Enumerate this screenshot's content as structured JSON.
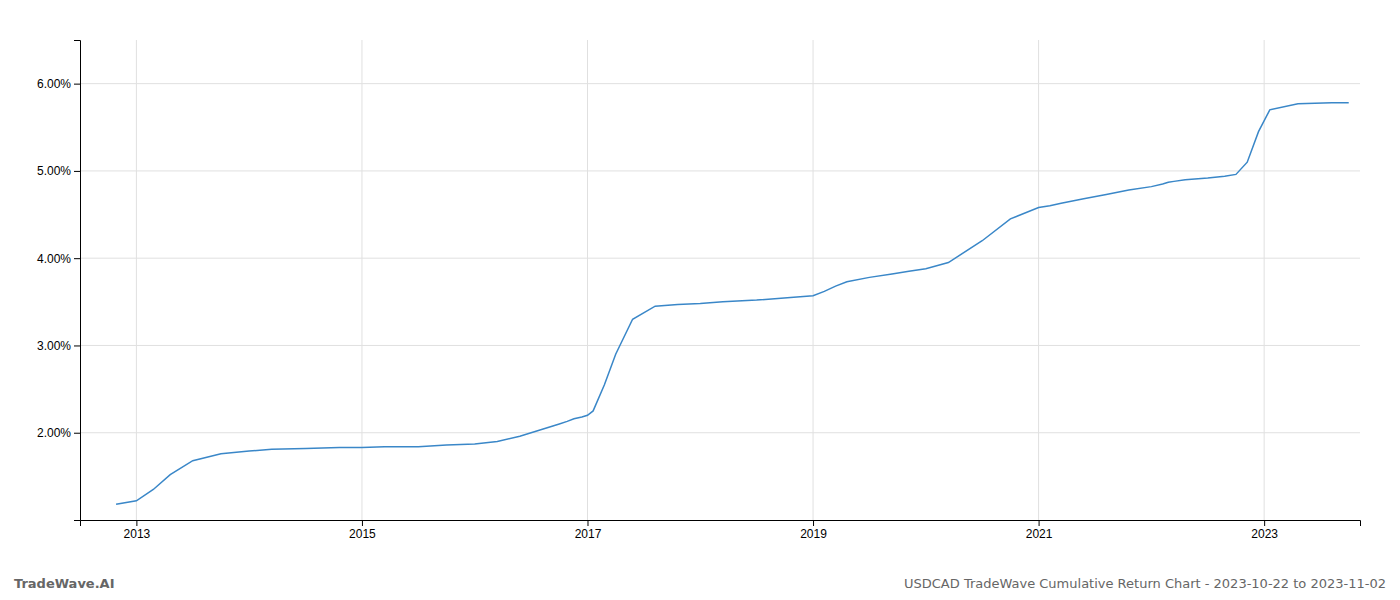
{
  "chart_data": {
    "type": "line",
    "title": "USDCAD TradeWave Cumulative Return Chart - 2023-10-22 to 2023-11-02",
    "annotations": [
      "TradeWave.AI"
    ],
    "color": "#3a87c8",
    "grid": true,
    "x": [
      2012.82,
      2013.0,
      2013.15,
      2013.3,
      2013.5,
      2013.75,
      2014.0,
      2014.2,
      2014.5,
      2014.8,
      2015.0,
      2015.2,
      2015.5,
      2015.75,
      2016.0,
      2016.2,
      2016.4,
      2016.55,
      2016.65,
      2016.75,
      2016.82,
      2016.88,
      2016.95,
      2017.0,
      2017.05,
      2017.15,
      2017.25,
      2017.4,
      2017.6,
      2017.8,
      2018.0,
      2018.2,
      2018.5,
      2018.8,
      2019.0,
      2019.1,
      2019.2,
      2019.3,
      2019.5,
      2019.7,
      2019.85,
      2020.0,
      2020.2,
      2020.5,
      2020.75,
      2021.0,
      2021.1,
      2021.2,
      2021.4,
      2021.6,
      2021.8,
      2022.0,
      2022.1,
      2022.15,
      2022.2,
      2022.3,
      2022.5,
      2022.65,
      2022.75,
      2022.85,
      2022.95,
      2023.05,
      2023.3,
      2023.6,
      2023.75
    ],
    "values": [
      1.18,
      1.22,
      1.35,
      1.52,
      1.68,
      1.76,
      1.79,
      1.81,
      1.82,
      1.83,
      1.83,
      1.84,
      1.84,
      1.86,
      1.87,
      1.9,
      1.96,
      2.02,
      2.06,
      2.1,
      2.13,
      2.16,
      2.18,
      2.2,
      2.25,
      2.55,
      2.9,
      3.3,
      3.45,
      3.47,
      3.48,
      3.5,
      3.52,
      3.55,
      3.57,
      3.62,
      3.68,
      3.73,
      3.78,
      3.82,
      3.85,
      3.88,
      3.95,
      4.2,
      4.45,
      4.58,
      4.6,
      4.63,
      4.68,
      4.73,
      4.78,
      4.82,
      4.85,
      4.87,
      4.88,
      4.9,
      4.92,
      4.94,
      4.96,
      5.1,
      5.45,
      5.7,
      5.77,
      5.78,
      5.78
    ],
    "xlim": [
      2012.5,
      2023.85
    ],
    "ylim": [
      1.0,
      6.5
    ],
    "xticks": [
      2013,
      2015,
      2017,
      2019,
      2021,
      2023
    ],
    "yticks": [
      {
        "value": 2.0,
        "label": "2.00%"
      },
      {
        "value": 3.0,
        "label": "3.00%"
      },
      {
        "value": 4.0,
        "label": "4.00%"
      },
      {
        "value": 5.0,
        "label": "5.00%"
      },
      {
        "value": 6.0,
        "label": "6.00%"
      }
    ]
  }
}
